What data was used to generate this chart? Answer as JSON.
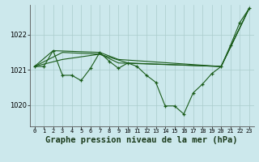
{
  "bg_color": "#cce8ec",
  "grid_color": "#aacccc",
  "line_color": "#1a5c1a",
  "xlabel": "Graphe pression niveau de la mer (hPa)",
  "xlabel_fontsize": 7.5,
  "ylim": [
    1019.4,
    1022.85
  ],
  "xlim": [
    -0.5,
    23.5
  ],
  "yticks": [
    1020,
    1021,
    1022
  ],
  "xticks": [
    0,
    1,
    2,
    3,
    4,
    5,
    6,
    7,
    8,
    9,
    10,
    11,
    12,
    13,
    14,
    15,
    16,
    17,
    18,
    19,
    20,
    21,
    22,
    23
  ],
  "series1_x": [
    0,
    1,
    2,
    3,
    4,
    5,
    6,
    7,
    8,
    9,
    10,
    11,
    12,
    13,
    14,
    15,
    16,
    17,
    18,
    19,
    20,
    21,
    22,
    23
  ],
  "series1_y": [
    1021.1,
    1021.1,
    1021.55,
    1020.85,
    1020.85,
    1020.7,
    1021.05,
    1021.5,
    1021.25,
    1021.05,
    1021.2,
    1021.1,
    1020.85,
    1020.65,
    1019.98,
    1019.98,
    1019.75,
    1020.35,
    1020.6,
    1020.9,
    1021.1,
    1021.7,
    1022.35,
    1022.75
  ],
  "series2_x": [
    0,
    2,
    7,
    9,
    20,
    23
  ],
  "series2_y": [
    1021.1,
    1021.55,
    1021.5,
    1021.3,
    1021.1,
    1022.75
  ],
  "series3_x": [
    0,
    3,
    7,
    10,
    20,
    23
  ],
  "series3_y": [
    1021.1,
    1021.5,
    1021.45,
    1021.2,
    1021.1,
    1022.75
  ],
  "series4_x": [
    0,
    3,
    7,
    9,
    20,
    23
  ],
  "series4_y": [
    1021.1,
    1021.3,
    1021.45,
    1021.2,
    1021.1,
    1022.75
  ]
}
